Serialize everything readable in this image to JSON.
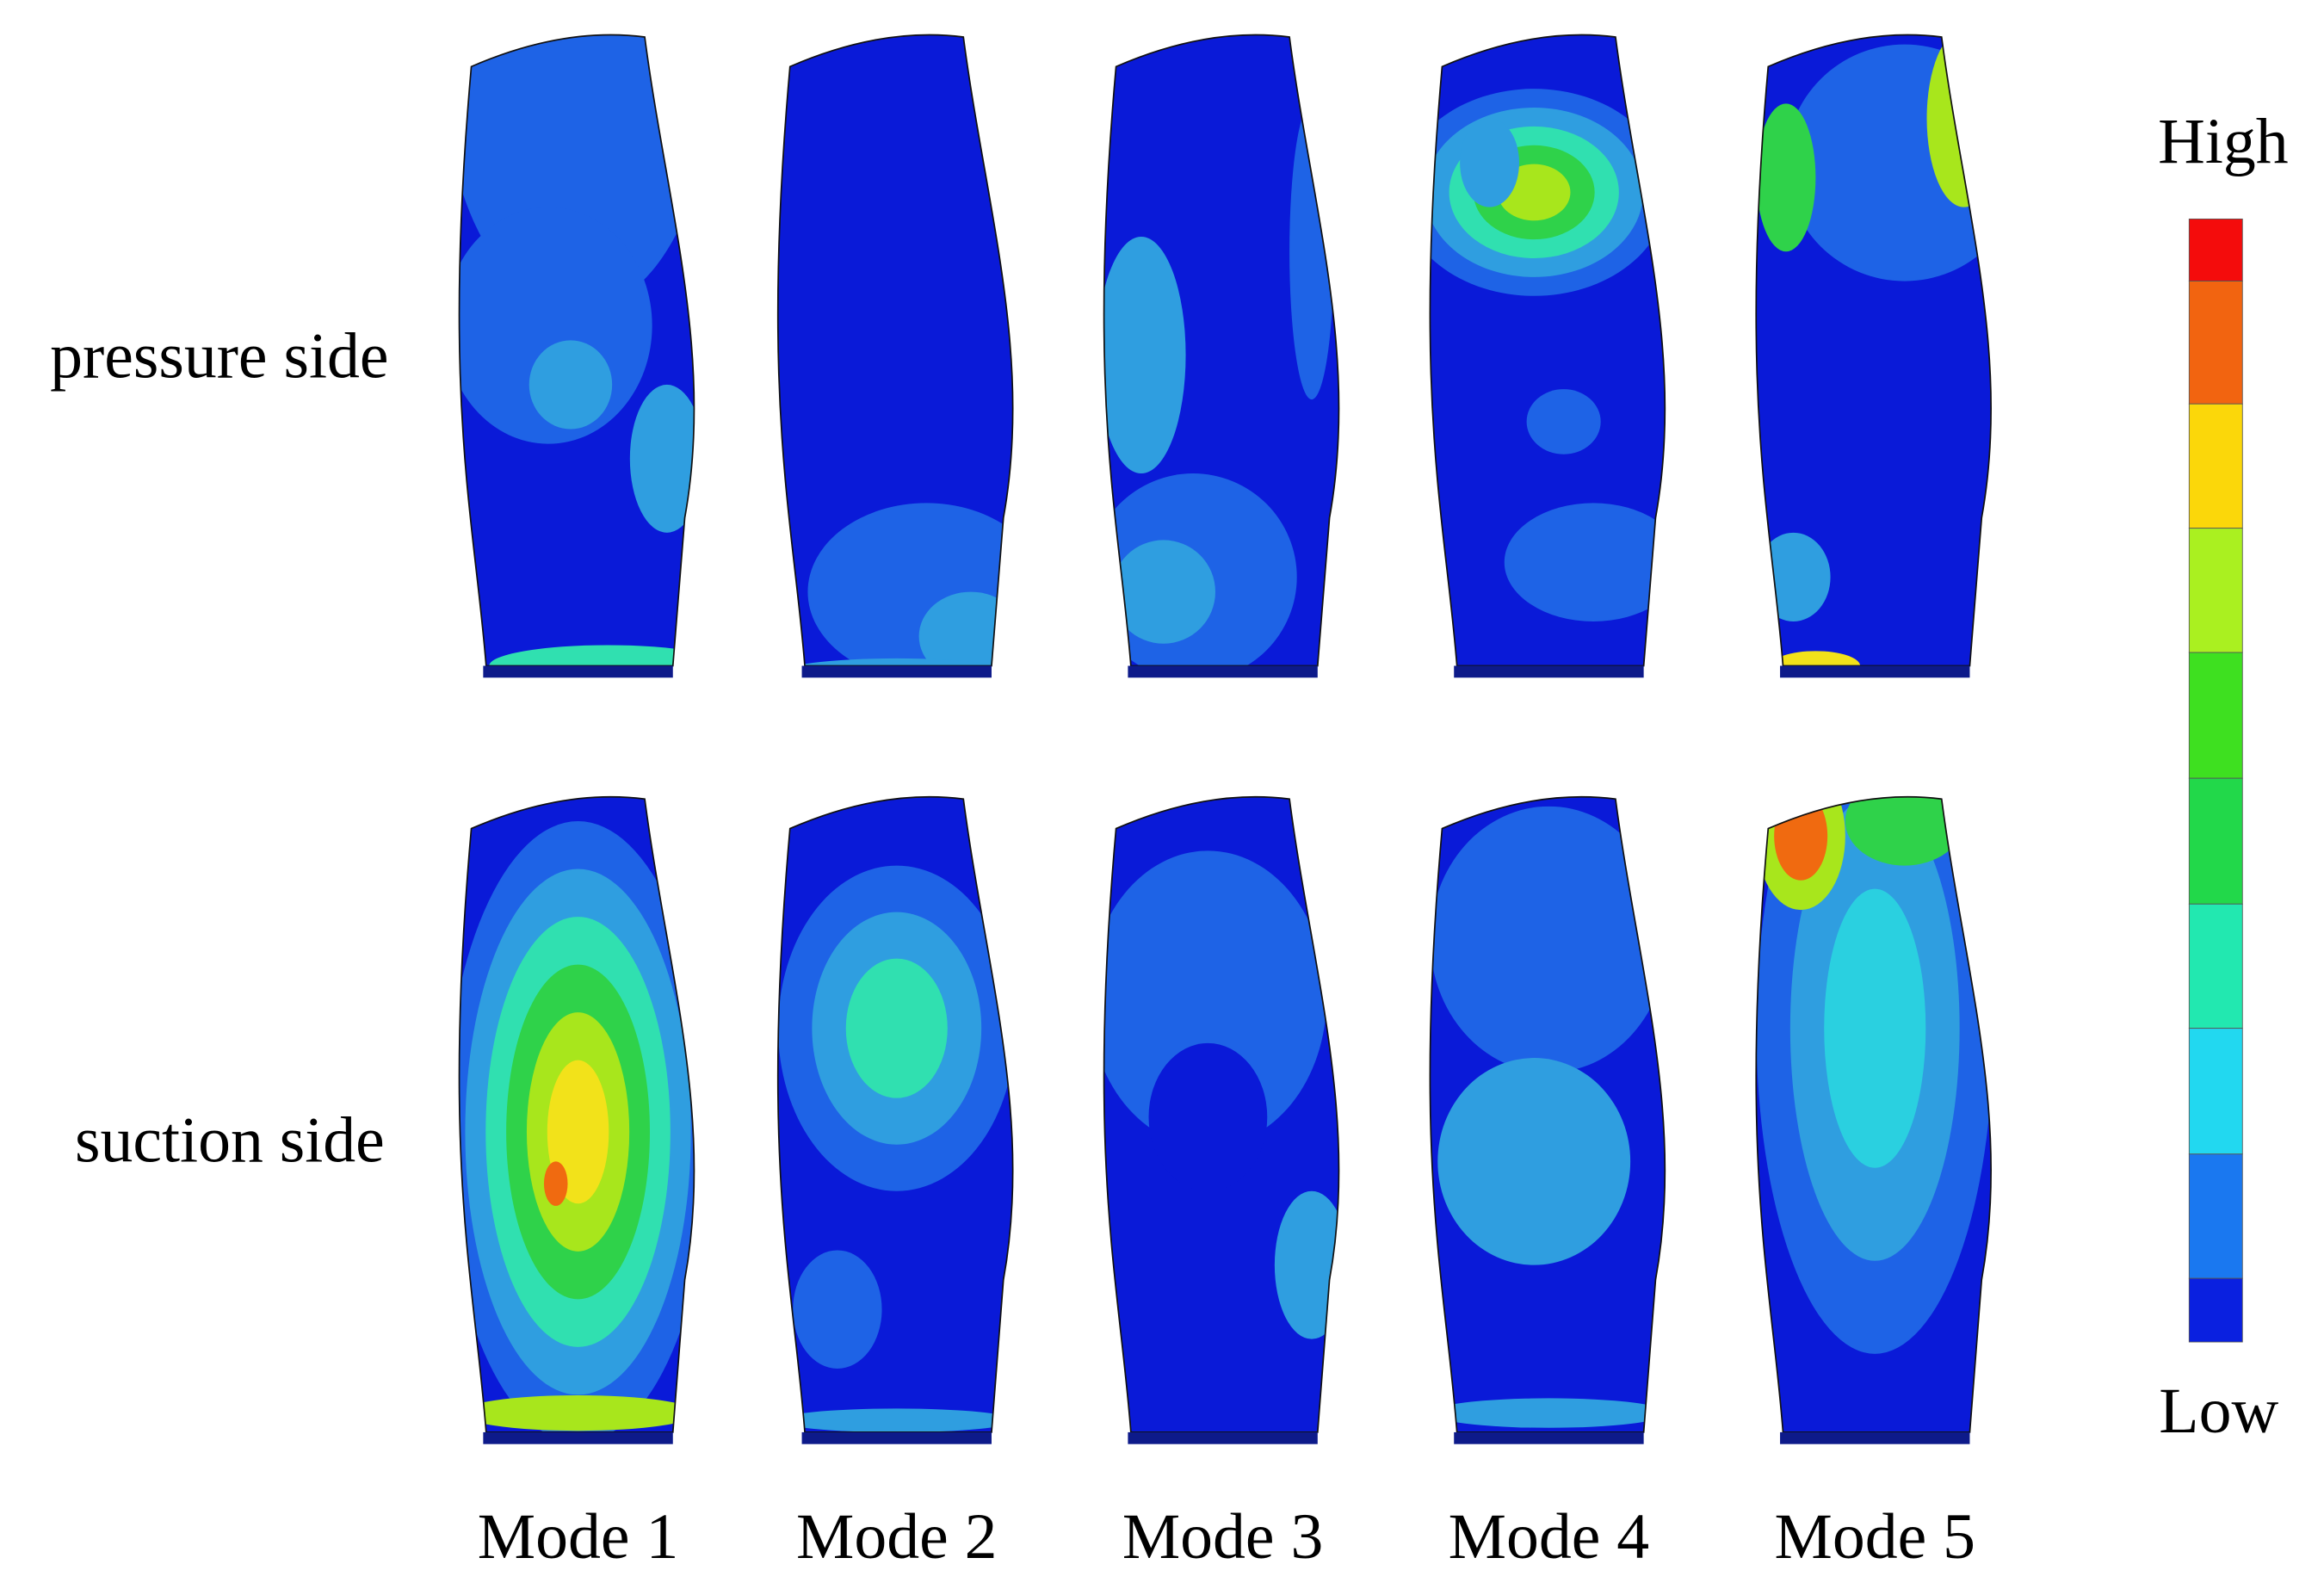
{
  "row_labels": [
    "pressure side",
    "suction side"
  ],
  "mode_labels": [
    "Mode 1",
    "Mode 2",
    "Mode 3",
    "Mode 4",
    "Mode 5"
  ],
  "colorbar": {
    "high": "High",
    "low": "Low"
  }
}
